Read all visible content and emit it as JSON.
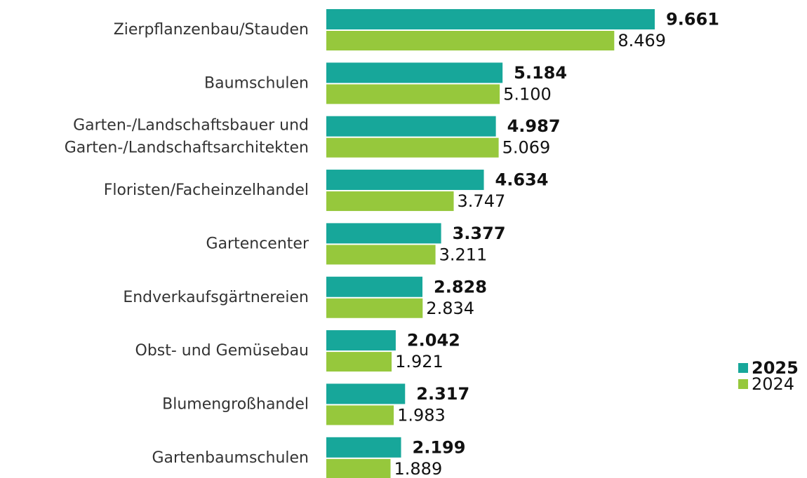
{
  "chart_data": {
    "type": "bar",
    "orientation": "horizontal",
    "categories": [
      "Zierpflanzenbau/Stauden",
      "Baumschulen",
      "Garten-/Landschaftsbauer und\nGarten-/Landschaftsarchitekten",
      "Floristen/Facheinzelhandel",
      "Gartencenter",
      "Endverkaufsgärtnereien",
      "Obst- und Gemüsebau",
      "Blumengroßhandel",
      "Gartenbaumschulen"
    ],
    "series": [
      {
        "name": "2025",
        "color": "#17a79a",
        "values": [
          9661,
          5184,
          4987,
          4634,
          3377,
          2828,
          2042,
          2317,
          2199
        ],
        "value_labels": [
          "9.661",
          "5.184",
          "4.987",
          "4.634",
          "3.377",
          "2.828",
          "2.042",
          "2.317",
          "2.199"
        ]
      },
      {
        "name": "2024",
        "color": "#96c83c",
        "values": [
          8469,
          5100,
          5069,
          3747,
          3211,
          2834,
          1921,
          1983,
          1889
        ],
        "value_labels": [
          "8.469",
          "5.100",
          "5.069",
          "3.747",
          "3.211",
          "2.834",
          "1.921",
          "1.983",
          "1.889"
        ]
      }
    ],
    "legend": "right"
  }
}
